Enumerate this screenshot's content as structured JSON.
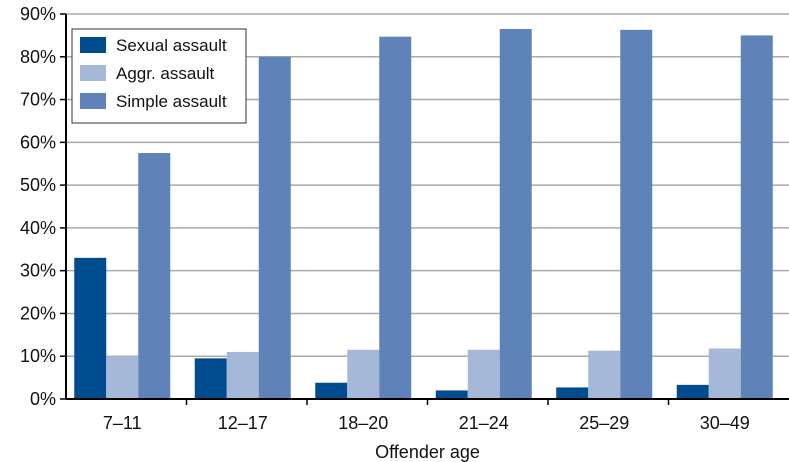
{
  "colors": {
    "sexual": "#004c8f",
    "aggr": "#a5b8d8",
    "simple": "#5f82b8",
    "grid": "#aaaaaa",
    "axis": "#000000"
  },
  "chart_data": {
    "type": "bar",
    "title": "",
    "xlabel": "Offender age",
    "ylabel": "",
    "ylim": [
      0,
      90
    ],
    "yticks": [
      "0%",
      "10%",
      "20%",
      "30%",
      "40%",
      "50%",
      "60%",
      "70%",
      "80%",
      "90%"
    ],
    "ytick_values": [
      0,
      10,
      20,
      30,
      40,
      50,
      60,
      70,
      80,
      90
    ],
    "categories": [
      "7–11",
      "12–17",
      "18–20",
      "21–24",
      "25–29",
      "30–49"
    ],
    "series": [
      {
        "name": "Sexual assault",
        "color_key": "sexual",
        "values": [
          33.0,
          9.5,
          3.8,
          2.0,
          2.7,
          3.3
        ]
      },
      {
        "name": "Aggr. assault",
        "color_key": "aggr",
        "values": [
          10.0,
          11.0,
          11.5,
          11.5,
          11.3,
          11.8
        ]
      },
      {
        "name": "Simple assault",
        "color_key": "simple",
        "values": [
          57.5,
          80.0,
          84.7,
          86.5,
          86.3,
          85.0
        ]
      }
    ],
    "grid": true,
    "legend_position": "top-left"
  }
}
